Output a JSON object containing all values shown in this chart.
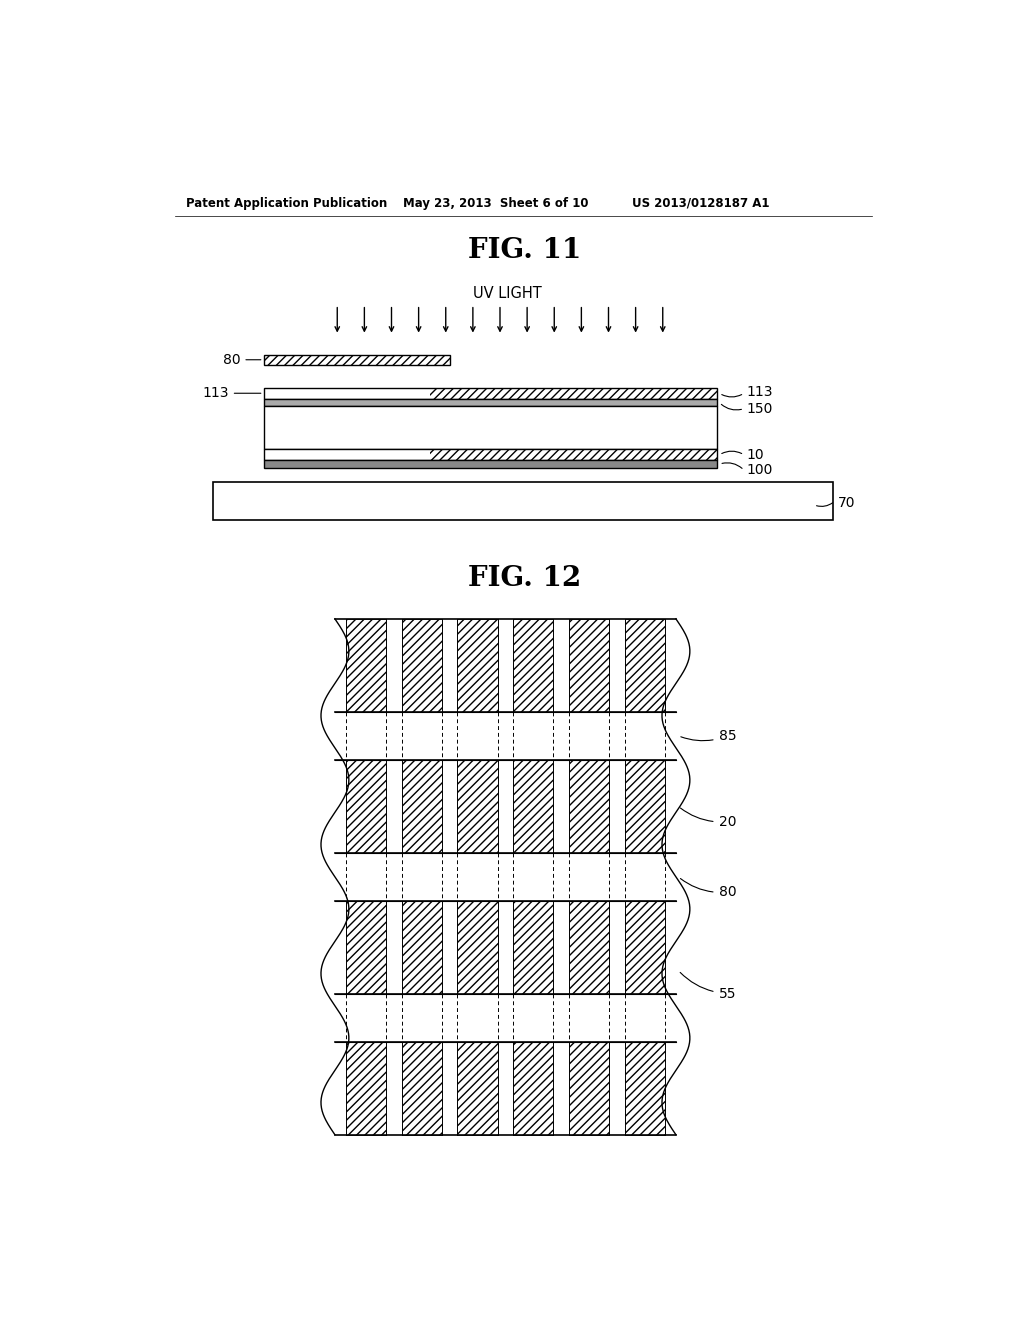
{
  "bg_color": "#ffffff",
  "fig_width": 10.24,
  "fig_height": 13.2,
  "header_text": "Patent Application Publication",
  "header_date": "May 23, 2013  Sheet 6 of 10",
  "header_patent": "US 2013/0128187 A1",
  "fig11_title": "FIG. 11",
  "fig12_title": "FIG. 12",
  "uv_label": "UV LIGHT",
  "labels_fig11": [
    "80",
    "113",
    "113",
    "150",
    "10",
    "100",
    "70"
  ],
  "labels_fig12": [
    "85",
    "20",
    "80",
    "55"
  ]
}
